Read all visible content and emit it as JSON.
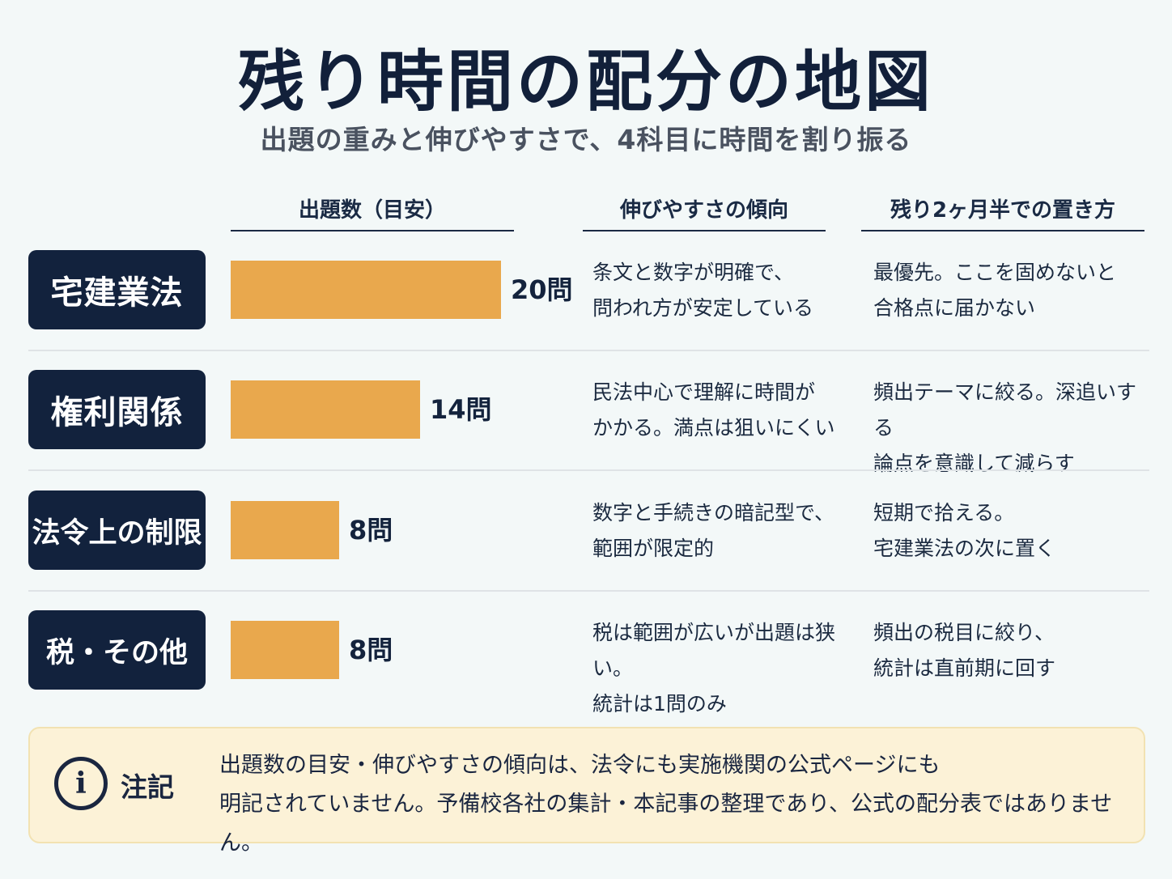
{
  "title": "残り時間の配分の地図",
  "subtitle": "出題の重みと伸びやすさで、4科目に時間を割り振る",
  "columns": {
    "count": "出題数（目安）",
    "trend": "伸びやすさの傾向",
    "plan": "残り2ヶ月半での置き方"
  },
  "chart_data": {
    "type": "bar",
    "orientation": "horizontal",
    "categories": [
      "宅建業法",
      "権利関係",
      "法令上の制限",
      "税・その他"
    ],
    "values": [
      20,
      14,
      8,
      8
    ],
    "value_labels": [
      "20問",
      "14問",
      "8問",
      "8問"
    ],
    "xlim": [
      0,
      20
    ]
  },
  "rows": [
    {
      "subject": "宅建業法",
      "trend": "条文と数字が明確で、\n問われ方が安定している",
      "plan": "最優先。ここを固めないと\n合格点に届かない"
    },
    {
      "subject": "権利関係",
      "trend": "民法中心で理解に時間が\nかかる。満点は狙いにくい",
      "plan": "頻出テーマに絞る。深追いする\n論点を意識して減らす"
    },
    {
      "subject": "法令上の制限",
      "trend": "数字と手続きの暗記型で、\n範囲が限定的",
      "plan": "短期で拾える。\n宅建業法の次に置く"
    },
    {
      "subject": "税・その他",
      "trend": "税は範囲が広いが出題は狭い。\n統計は1問のみ",
      "plan": "頻出の税目に絞り、\n統計は直前期に回す"
    }
  ],
  "note": {
    "icon": "info-icon",
    "icon_glyph": "i",
    "label": "注記",
    "text": "出題数の目安・伸びやすさの傾向は、法令にも実施機関の公式ページにも\n明記されていません。予備校各社の集計・本記事の整理であり、公式の配分表ではありません。"
  },
  "colors": {
    "background": "#f3f8f8",
    "label_box": "#12223d",
    "bar": "#e9a84d",
    "note_background": "#fcf2d7"
  }
}
